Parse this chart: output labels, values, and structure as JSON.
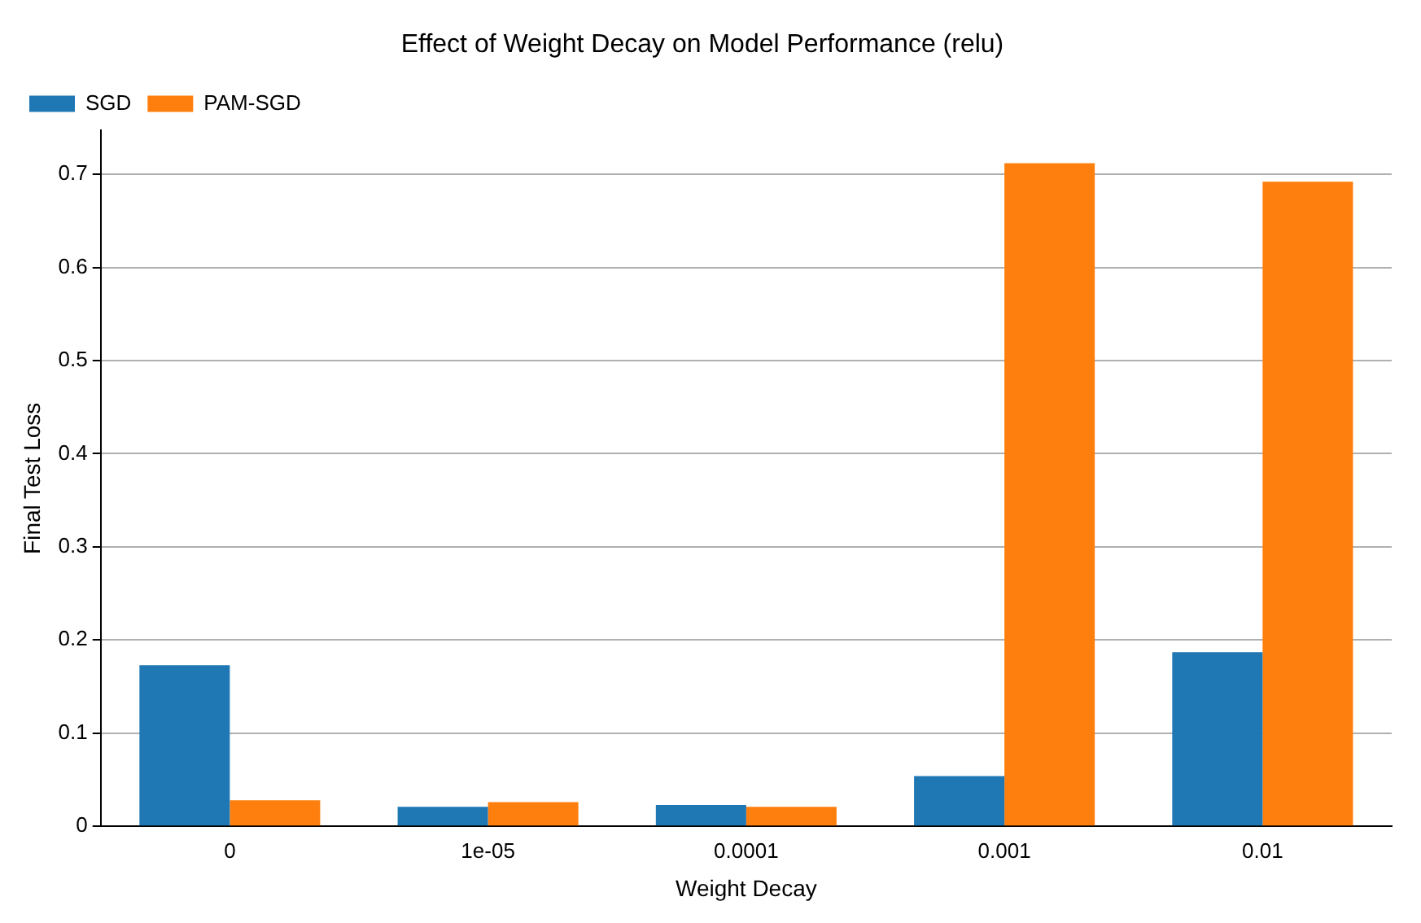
{
  "chart_data": {
    "type": "bar",
    "title": "Effect of Weight Decay on Model Performance (relu)",
    "xlabel": "Weight Decay",
    "ylabel": "Final Test Loss",
    "categories": [
      "0",
      "1e-05",
      "0.0001",
      "0.001",
      "0.01"
    ],
    "series": [
      {
        "name": "SGD",
        "color": "#1f77b4",
        "values": [
          0.173,
          0.021,
          0.023,
          0.054,
          0.187
        ]
      },
      {
        "name": "PAM-SGD",
        "color": "#ff7f0e",
        "values": [
          0.028,
          0.026,
          0.021,
          0.712,
          0.692
        ]
      }
    ],
    "ylim": [
      0,
      0.747
    ],
    "yticks": [
      0,
      0.1,
      0.2,
      0.3,
      0.4,
      0.5,
      0.6,
      0.7
    ],
    "grid": "y",
    "legend": "top left"
  }
}
